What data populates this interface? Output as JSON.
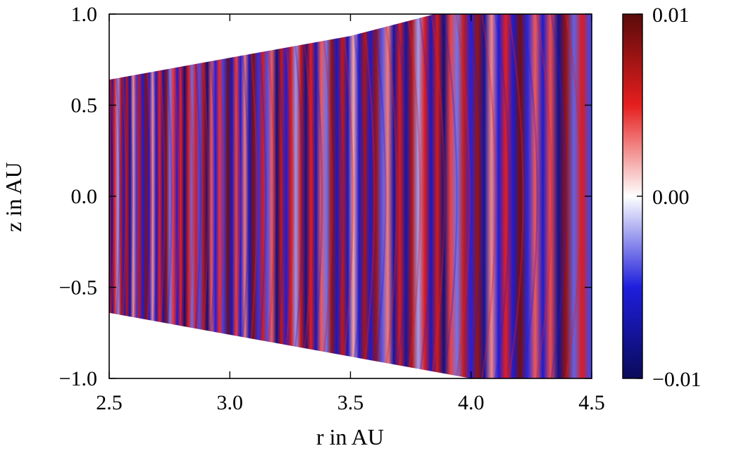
{
  "chart_data": {
    "type": "heatmap",
    "title": "",
    "xlabel": "r in AU",
    "ylabel": "z in AU",
    "xlim": [
      2.5,
      4.5
    ],
    "ylim": [
      -1.0,
      1.0
    ],
    "xticks": [
      2.5,
      3.0,
      3.5,
      4.0,
      4.5
    ],
    "xtick_labels": [
      "2.5",
      "3.0",
      "3.5",
      "4.0",
      "4.5"
    ],
    "yticks": [
      1.0,
      0.5,
      0.0,
      -0.5,
      -1.0
    ],
    "ytick_labels": [
      "1.0",
      "0.5",
      "0.0",
      "−0.5",
      "−1.0"
    ],
    "domain_boundary": {
      "upper": [
        [
          2.5,
          0.64
        ],
        [
          3.5,
          0.88
        ],
        [
          3.85,
          1.0
        ]
      ],
      "lower": [
        [
          2.5,
          -0.64
        ],
        [
          3.5,
          -0.88
        ],
        [
          4.0,
          -1.0
        ]
      ]
    },
    "colorbar": {
      "vmin": -0.01,
      "vmax": 0.01,
      "ticks": [
        0.01,
        0.0,
        -0.01
      ],
      "tick_labels": [
        "0.01",
        "0.00",
        "−0.01"
      ],
      "colormap": [
        "#0a0a5a",
        "#1e1edc",
        "#ffffff",
        "#e61e1e",
        "#5a0a0a"
      ]
    },
    "grid": false,
    "legend": "none"
  }
}
